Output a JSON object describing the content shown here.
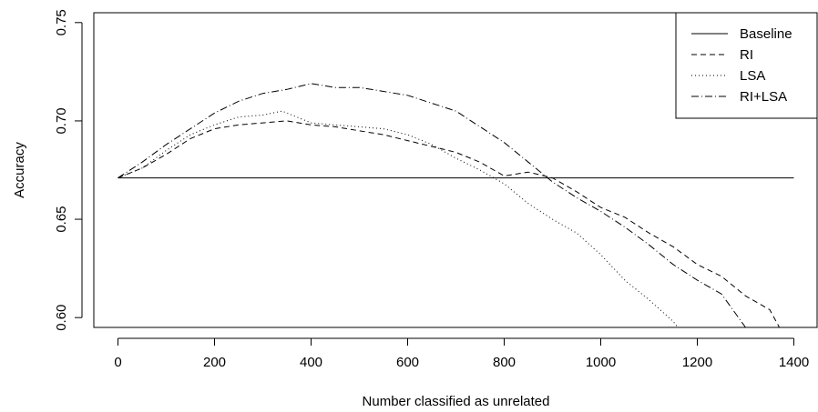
{
  "chart_data": {
    "type": "line",
    "title": "",
    "xlabel": "Number classified as unrelated",
    "ylabel": "Accuracy",
    "xlim": [
      -50,
      1450
    ],
    "ylim": [
      0.595,
      0.755
    ],
    "xticks": [
      0,
      200,
      400,
      600,
      800,
      1000,
      1200,
      1400
    ],
    "xtick_labels": [
      "0",
      "200",
      "400",
      "600",
      "800",
      "1000",
      "1200",
      "1400"
    ],
    "yticks": [
      0.6,
      0.65,
      0.7,
      0.75
    ],
    "ytick_labels": [
      "0.60",
      "0.65",
      "0.70",
      "0.75"
    ],
    "grid": false,
    "legend_position": "top-right",
    "series": [
      {
        "name": "Baseline",
        "dash": "solid",
        "x": [
          0,
          1400
        ],
        "y": [
          0.671,
          0.671
        ]
      },
      {
        "name": "RI",
        "dash": "dashed",
        "x": [
          0,
          50,
          100,
          150,
          200,
          250,
          300,
          350,
          400,
          450,
          500,
          550,
          600,
          650,
          700,
          750,
          800,
          850,
          900,
          950,
          1000,
          1050,
          1100,
          1150,
          1200,
          1250,
          1300,
          1350,
          1370
        ],
        "y": [
          0.671,
          0.676,
          0.683,
          0.691,
          0.696,
          0.698,
          0.699,
          0.7,
          0.698,
          0.697,
          0.695,
          0.693,
          0.69,
          0.687,
          0.684,
          0.679,
          0.672,
          0.674,
          0.671,
          0.664,
          0.656,
          0.651,
          0.643,
          0.636,
          0.627,
          0.621,
          0.611,
          0.604,
          0.595
        ]
      },
      {
        "name": "LSA",
        "dash": "dotted",
        "x": [
          0,
          50,
          100,
          150,
          200,
          250,
          300,
          340,
          400,
          450,
          500,
          550,
          600,
          650,
          700,
          750,
          800,
          850,
          900,
          950,
          1000,
          1050,
          1100,
          1150,
          1160
        ],
        "y": [
          0.671,
          0.676,
          0.685,
          0.693,
          0.698,
          0.702,
          0.703,
          0.705,
          0.699,
          0.698,
          0.697,
          0.696,
          0.693,
          0.688,
          0.681,
          0.675,
          0.668,
          0.658,
          0.65,
          0.643,
          0.632,
          0.619,
          0.609,
          0.598,
          0.595
        ]
      },
      {
        "name": "RI+LSA",
        "dash": "dashdot",
        "x": [
          0,
          50,
          100,
          150,
          200,
          250,
          300,
          350,
          400,
          450,
          500,
          550,
          600,
          650,
          700,
          750,
          800,
          850,
          900,
          950,
          1000,
          1050,
          1100,
          1150,
          1200,
          1250,
          1300
        ],
        "y": [
          0.671,
          0.679,
          0.688,
          0.696,
          0.704,
          0.71,
          0.714,
          0.716,
          0.719,
          0.717,
          0.717,
          0.715,
          0.713,
          0.709,
          0.705,
          0.697,
          0.689,
          0.679,
          0.669,
          0.661,
          0.654,
          0.646,
          0.637,
          0.627,
          0.619,
          0.612,
          0.595
        ]
      }
    ]
  }
}
